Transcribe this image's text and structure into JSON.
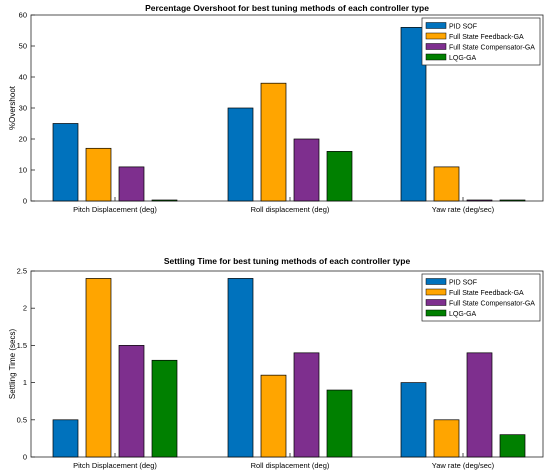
{
  "chart_data": [
    {
      "type": "bar",
      "title": "Percentage Overshoot for best tuning methods of each controller type",
      "xlabel": "",
      "ylabel": "%Overshoot",
      "categories": [
        "Pitch Displacement (deg)",
        "Roll displacement (deg)",
        "Yaw rate (deg/sec)"
      ],
      "ylim": [
        0,
        60
      ],
      "yticks": [
        0,
        10,
        20,
        30,
        40,
        50,
        60
      ],
      "ytick_labels": [
        "0",
        "10",
        "20",
        "30",
        "40",
        "50",
        "60"
      ],
      "legend_position": "top-right",
      "grid": false,
      "series": [
        {
          "name": "PID SOF",
          "color": "#0072BD",
          "values": [
            25,
            30,
            56
          ]
        },
        {
          "name": "Full State Feedback-GA",
          "color": "#FFA500",
          "values": [
            17,
            38,
            11
          ]
        },
        {
          "name": "Full State Compensator-GA",
          "color": "#7E2F8E",
          "values": [
            11,
            20,
            0.3
          ]
        },
        {
          "name": "LQG-GA",
          "color": "#008000",
          "values": [
            0.3,
            16,
            0.3
          ]
        }
      ]
    },
    {
      "type": "bar",
      "title": "Settling Time for best tuning methods of each controller type",
      "xlabel": "",
      "ylabel": "Settling Time (secs)",
      "categories": [
        "Pitch Displacement (deg)",
        "Roll displacement (deg)",
        "Yaw rate (deg/sec)"
      ],
      "ylim": [
        0,
        2.5
      ],
      "yticks": [
        0,
        0.5,
        1,
        1.5,
        2,
        2.5
      ],
      "ytick_labels": [
        "0",
        "0.5",
        "1",
        "1.5",
        "2",
        "2.5"
      ],
      "legend_position": "top-right",
      "grid": false,
      "series": [
        {
          "name": "PID SOF",
          "color": "#0072BD",
          "values": [
            0.5,
            2.4,
            1.0
          ]
        },
        {
          "name": "Full State Feedback-GA",
          "color": "#FFA500",
          "values": [
            2.4,
            1.1,
            0.5
          ]
        },
        {
          "name": "Full State Compensator-GA",
          "color": "#7E2F8E",
          "values": [
            1.5,
            1.4,
            1.4
          ]
        },
        {
          "name": "LQG-GA",
          "color": "#008000",
          "values": [
            1.3,
            0.9,
            0.3
          ]
        }
      ]
    }
  ]
}
